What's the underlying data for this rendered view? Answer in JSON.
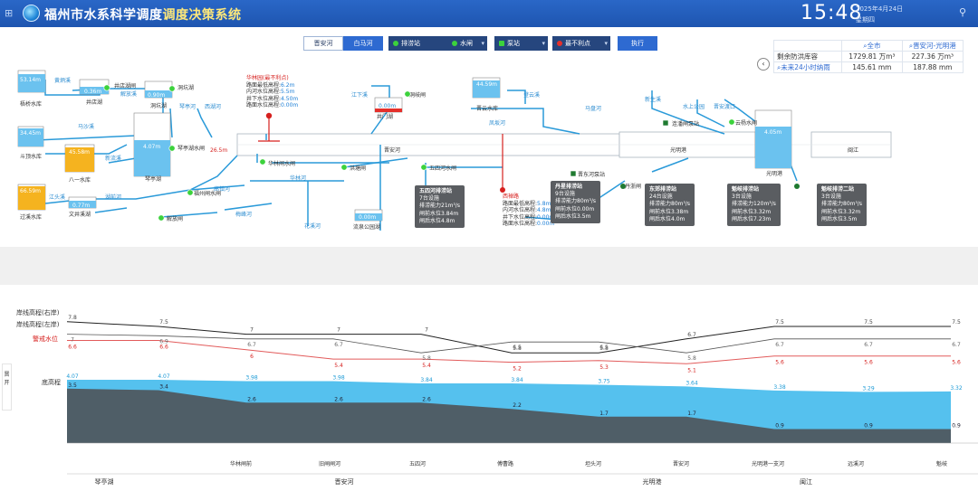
{
  "header": {
    "apps_icon": "grid-icon",
    "title_main": "福州市水系科学调度",
    "title_highlight": "调度决策系统",
    "time": "15:48",
    "date": "2025年4月24日",
    "weekday": "星期四",
    "user_icon": "user-icon"
  },
  "toolbar": {
    "tab_left": "晋安河",
    "tab_right": "白马河",
    "dropdown_gate": "排涝站",
    "dropdown_sluice": "水闸",
    "dropdown_pump": "泵站",
    "dropdown_warn": "最不利点",
    "execute": "执行"
  },
  "stats": {
    "col_all": "全市",
    "col_section": "晋安河-光明港",
    "row1_label": "剩余防洪库容",
    "row1_all": "1729.81 万m³",
    "row1_section": "227.36 万m³",
    "row2_label": "未来24小时纳雨",
    "row2_all": "145.61 mm",
    "row2_section": "187.88 mm"
  },
  "map": {
    "reservoirs": [
      {
        "name": "梧桥水库",
        "value": "53.14m"
      },
      {
        "name": "井店湖",
        "value": "0.36m"
      },
      {
        "name": "洞坑湖",
        "value": "0.90m"
      },
      {
        "name": "琴亭湖",
        "value": "4.07m"
      },
      {
        "name": "斗顶水库",
        "value": "34.45m"
      },
      {
        "name": "八一水库",
        "value": "45.58m"
      },
      {
        "name": "过溪水库",
        "value": "66.59m"
      },
      {
        "name": "文井溪湖",
        "value": "0.77m"
      },
      {
        "name": "井门湖",
        "value": "0.00m"
      },
      {
        "name": "流泉公园湖",
        "value": "0.00m"
      },
      {
        "name": "晋云水库",
        "value": "44.59m"
      },
      {
        "name": "光明港",
        "value": "4.05m"
      }
    ],
    "labels": {
      "jiangdian": "井店湖闸",
      "yanggao": "洋涧闸",
      "xiaoshanpo": "黄炳溪",
      "jinshanpo": "解放溪",
      "dongkeng": "洞坑湖",
      "dayang": "洞岐闸",
      "qiqiang": "琴亭河",
      "xiyuan": "西湖河",
      "mashi": "马沙溪",
      "xinliu": "新流溪",
      "jiangtou": "江头溪",
      "hudi": "湖前河",
      "gaozhen": "高镇河",
      "meifeng": "梅峰河",
      "heshan": "何山河",
      "hualin": "华林河",
      "huaxi": "花溪河",
      "xiangqian": "新店溪",
      "gongqi": "工业河",
      "fengqi": "凤坂河",
      "xinsheng": "新生溪",
      "qinting_gate": "琴亭湖水闸",
      "jiudian": "解放闸",
      "changcheng": "华林闸水闸",
      "wuxi": "五四河水闸",
      "qinghe": "福州闸水闸",
      "hongxi": "洪塘闸",
      "jinan": "晋安河",
      "jingangtou": "江下溪",
      "hejiaqiao": "马盘河",
      "guangming": "光明港",
      "minjiang": "闽江",
      "shuixia": "水上公园",
      "fengpo": "晋安渡口",
      "wuliqiao": "连江桥闸",
      "jinan_station": "连潘闸泵站",
      "yundang": "云杨水闸",
      "dengyun": "登云溪",
      "jin_station": "晋东河泵站",
      "danmian": "丹浙闸",
      "guangmingpo": "光明港一",
      "qilin": "连坂闸",
      "lianban": "排涝",
      "lianjiang": "连潘湖",
      "level_label": "26.5m"
    },
    "huishan_note": {
      "title": "华林园(最不利点)",
      "l1_label": "路面最低高程:",
      "l1_value": "6.2m",
      "l2_label": "内河水位高程:",
      "l2_value": "5.5m",
      "l3_label": "井下水位高程:",
      "l3_value": "4.50m",
      "l4_label": "路面水位高程:",
      "l4_value": "0.00m"
    },
    "xiao_note": {
      "title": "西禅路",
      "l1_label": "路面最低高程:",
      "l1_value": "5.8m",
      "l2_label": "内河水位高程:",
      "l2_value": "4.8m",
      "l3_label": "井下水位高程:",
      "l3_value": "0.00m",
      "l4_label": "路面水位高程:",
      "l4_value": "0.00m"
    },
    "tips": [
      {
        "title": "五四河排涝站",
        "l1": "7台设施",
        "l2": "排涝能力21m³/s",
        "l3": "闸前水位3.84m",
        "l4": "闸后水位4.8m"
      },
      {
        "title": "丹星排涝站",
        "l1": "9台设施",
        "l2": "排涝能力80m³/s",
        "l3": "闸前水位0.00m",
        "l4": "闸后水位3.5m"
      },
      {
        "title": "东郊排涝站",
        "l1": "24台设施",
        "l2": "排涝能力80m³/s",
        "l3": "闸前水位3.38m",
        "l4": "闸后水位4.0m"
      },
      {
        "title": "魁岐排涝站",
        "l1": "3台设施",
        "l2": "排涝能力120m³/s",
        "l3": "闸前水位3.32m",
        "l4": "闸后水位7.23m"
      },
      {
        "title": "魁岐排涝二站",
        "l1": "3台设施",
        "l2": "排涝能力80m³/s",
        "l3": "闸前水位3.32m",
        "l4": "闸后水位3.5m"
      }
    ]
  },
  "profile": {
    "legend_right_bank": "岸线高程(右岸)",
    "legend_left_bank": "岸线高程(左岸)",
    "legend_warning": "警戒水位",
    "legend_bottom": "底高程",
    "side_tab": "晋 开",
    "bank_right": [
      7.8,
      7.5,
      7,
      7,
      7,
      5.8,
      5.8,
      6.7,
      7.5,
      7.5,
      7.5
    ],
    "bank_left": [
      7.0,
      6.9,
      6.7,
      6.7,
      5.8,
      6.5,
      6.5,
      5.8,
      6.7,
      6.7,
      6.7
    ],
    "warning": [
      6.6,
      6.6,
      6,
      5.4,
      5.4,
      5.2,
      5.3,
      5.1,
      5.6,
      5.6,
      5.6
    ],
    "water": [
      4.07,
      4.07,
      3.98,
      3.98,
      3.84,
      3.84,
      3.75,
      3.64,
      3.38,
      3.29,
      3.32
    ],
    "bottom": [
      3.5,
      3.4,
      2.6,
      2.6,
      2.6,
      2.2,
      1.7,
      1.7,
      0.9,
      0.9,
      0.9
    ],
    "stations": [
      "华林闸前",
      "旧闸闸河",
      "五四河",
      "傅曹路",
      "坦头河",
      "晋安河",
      "光明港一支河",
      "远溪河",
      "魁岐"
    ],
    "reaches": [
      "琴亭湖",
      "晋安河",
      "光明港",
      "闽江"
    ]
  }
}
